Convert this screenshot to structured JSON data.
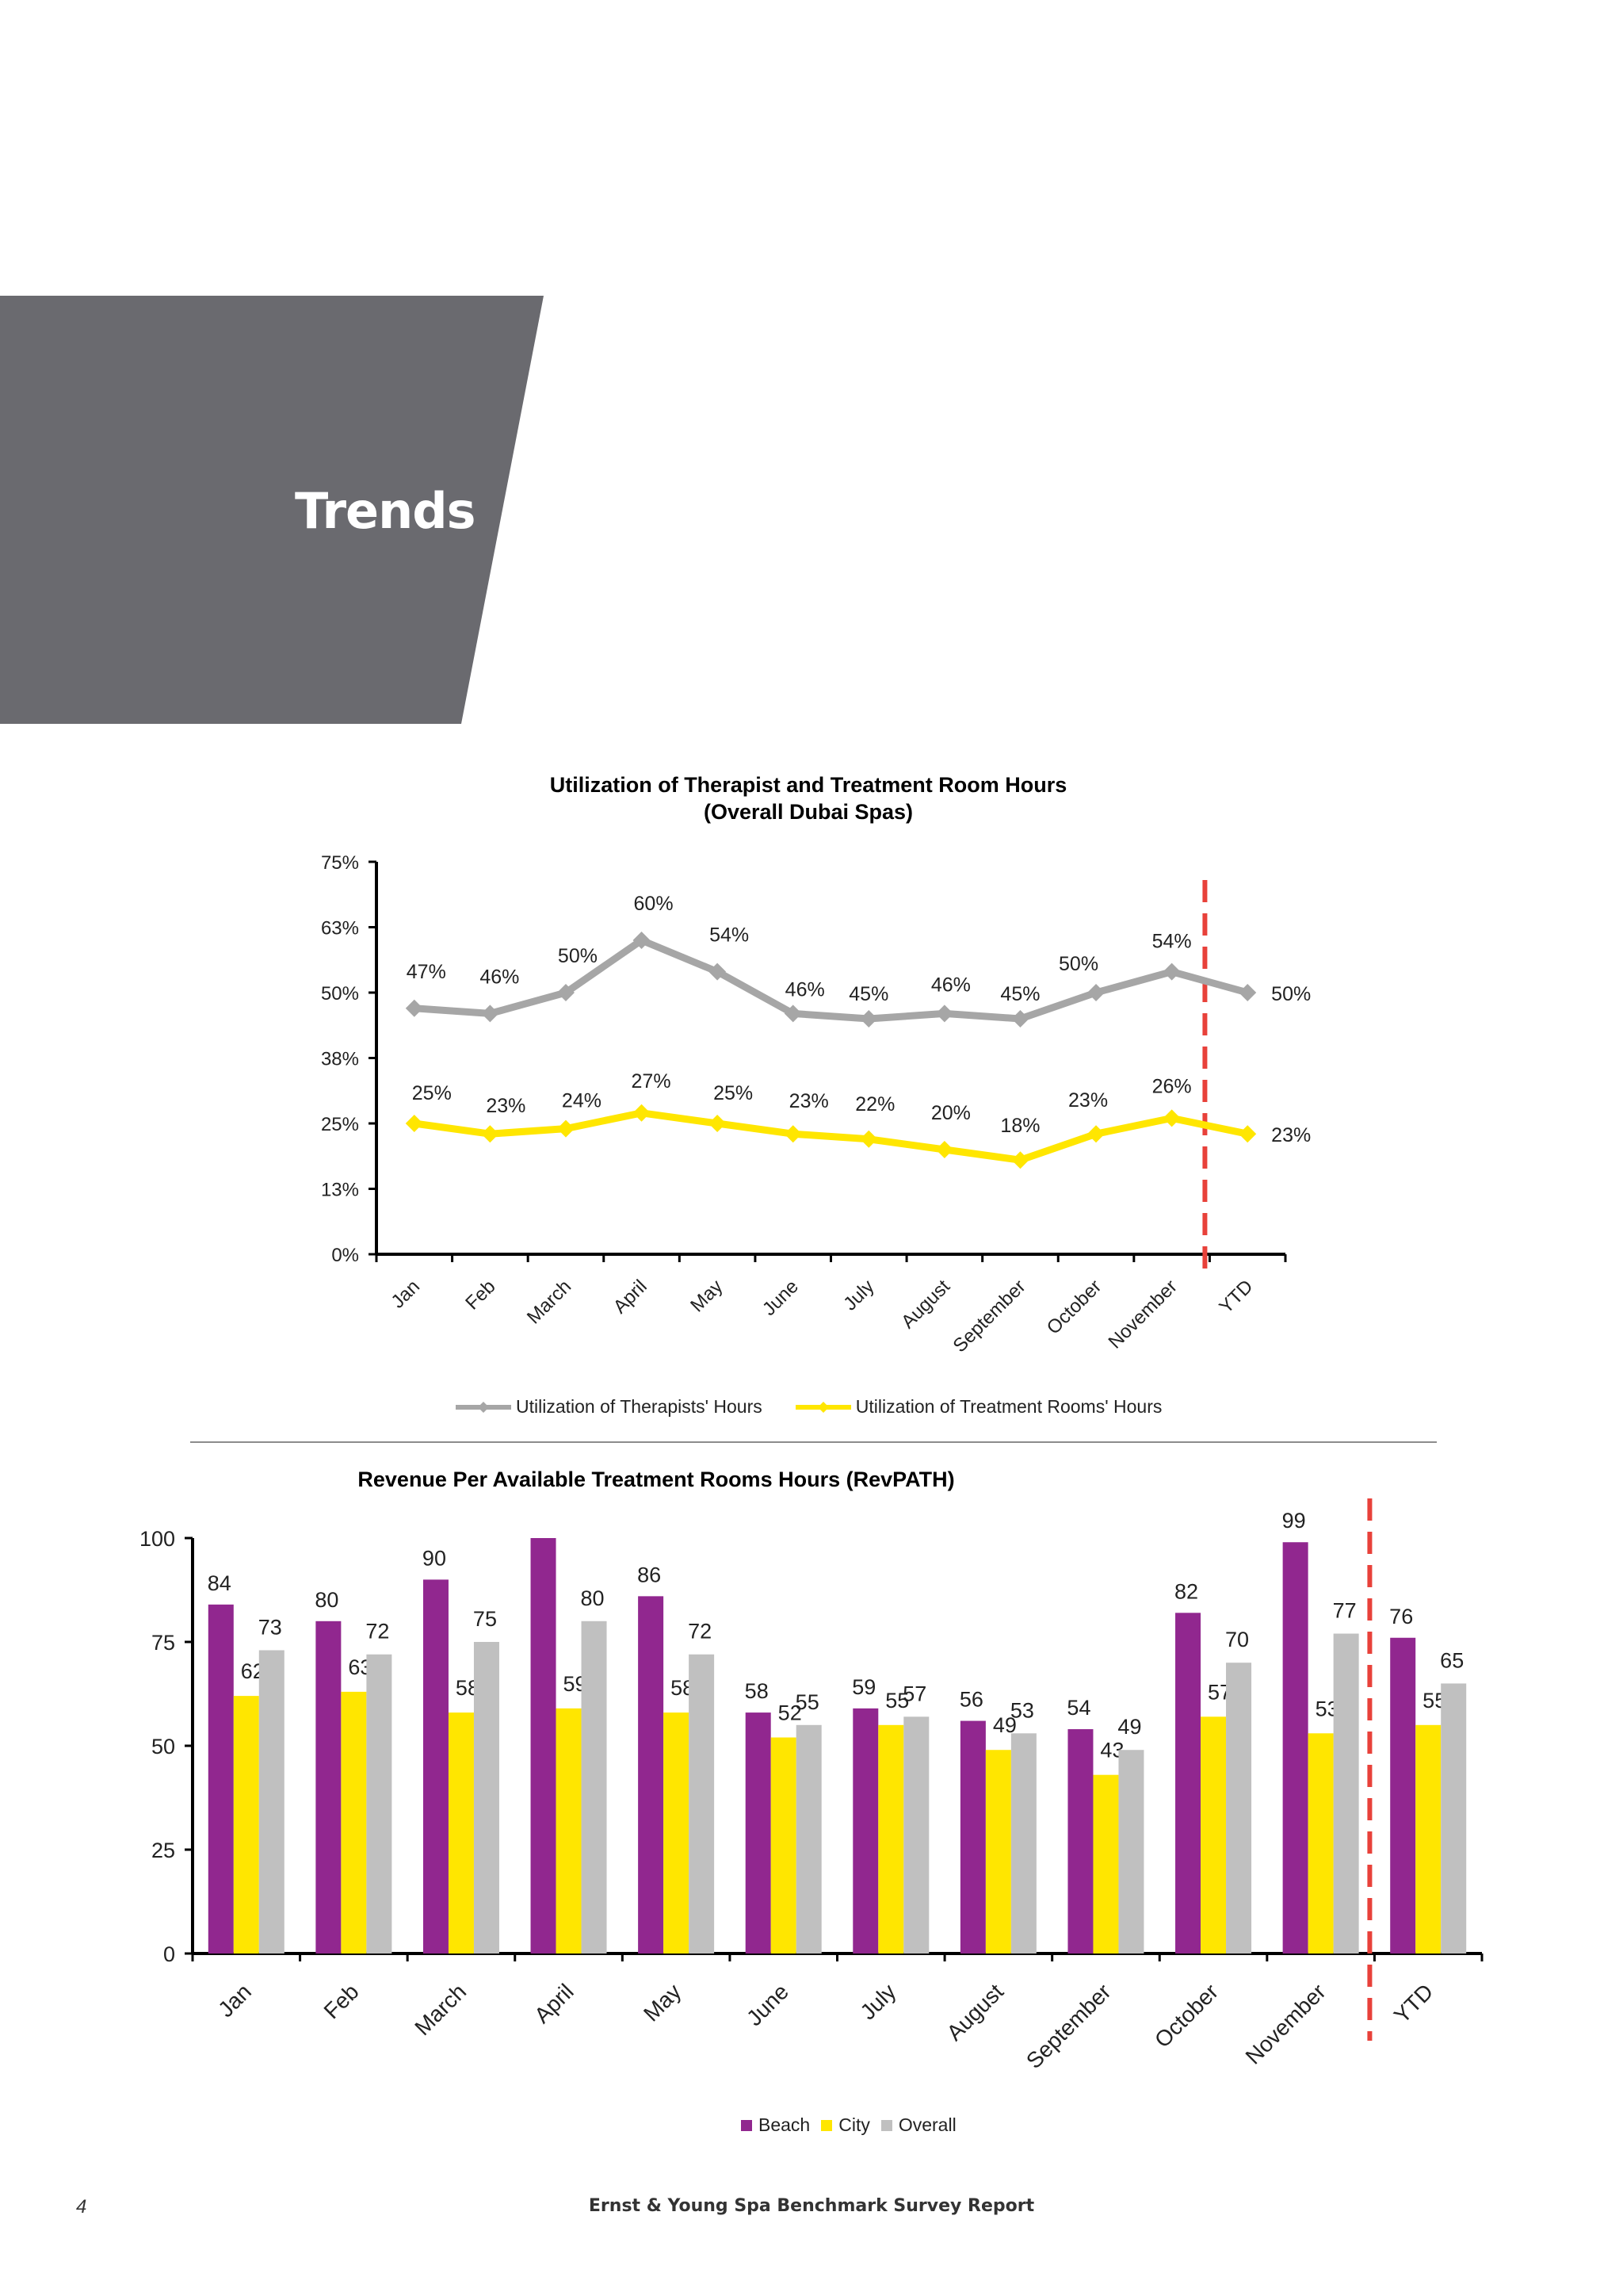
{
  "page": {
    "section_title": "Trends",
    "page_number": "4",
    "footer": "Ernst & Young Spa Benchmark Survey Report",
    "banner_color": "#6a6a6f"
  },
  "chart_data": [
    {
      "type": "line",
      "title": "Utilization of Therapist and Treatment Room Hours",
      "subtitle": "(Overall Dubai Spas)",
      "categories": [
        "Jan",
        "Feb",
        "March",
        "April",
        "May",
        "June",
        "July",
        "August",
        "September",
        "October",
        "November",
        "YTD"
      ],
      "y_ticks": [
        "0%",
        "13%",
        "25%",
        "38%",
        "50%",
        "63%",
        "75%"
      ],
      "ylim": [
        0,
        75
      ],
      "series": [
        {
          "name": "Utilization of Therapists' Hours",
          "color": "#a6a6a6",
          "values": [
            47,
            46,
            50,
            60,
            54,
            46,
            45,
            46,
            45,
            50,
            54,
            50
          ],
          "labels": [
            "47%",
            "46%",
            "50%",
            "60%",
            "54%",
            "46%",
            "45%",
            "46%",
            "45%",
            "50%",
            "54%",
            "50%"
          ]
        },
        {
          "name": "Utilization of Treatment Rooms' Hours",
          "color": "#ffe600",
          "values": [
            25,
            23,
            24,
            27,
            25,
            23,
            22,
            20,
            18,
            23,
            26,
            23
          ],
          "labels": [
            "25%",
            "23%",
            "24%",
            "27%",
            "25%",
            "23%",
            "22%",
            "20%",
            "18%",
            "23%",
            "26%",
            "23%"
          ]
        }
      ],
      "separator": "dashed red line between November and YTD",
      "legend_position": "bottom"
    },
    {
      "type": "bar",
      "title": "Revenue Per Available Treatment Rooms Hours (RevPATH)",
      "categories": [
        "Jan",
        "Feb",
        "March",
        "April",
        "May",
        "June",
        "July",
        "August",
        "September",
        "October",
        "November",
        "YTD"
      ],
      "y_ticks": [
        "0",
        "25",
        "50",
        "75",
        "100"
      ],
      "ylim": [
        0,
        100
      ],
      "series": [
        {
          "name": "Beach",
          "color": "#91278f",
          "values": [
            84,
            80,
            90,
            100,
            86,
            58,
            59,
            56,
            54,
            82,
            99,
            76
          ],
          "labels": [
            "84",
            "80",
            "90",
            "",
            "86",
            "58",
            "59",
            "56",
            "54",
            "82",
            "99",
            "76"
          ]
        },
        {
          "name": "City",
          "color": "#ffe600",
          "values": [
            62,
            63,
            58,
            59,
            58,
            52,
            55,
            49,
            43,
            57,
            53,
            55
          ],
          "labels": [
            "62",
            "63",
            "58",
            "59",
            "58",
            "52",
            "55",
            "49",
            "43",
            "57",
            "53",
            "55"
          ]
        },
        {
          "name": "Overall",
          "color": "#c0c0c0",
          "values": [
            73,
            72,
            75,
            80,
            72,
            55,
            57,
            53,
            49,
            70,
            77,
            65
          ],
          "labels": [
            "73",
            "72",
            "75",
            "80",
            "72",
            "55",
            "57",
            "53",
            "49",
            "70",
            "77",
            "65"
          ]
        }
      ],
      "separator": "dashed red line between November and YTD",
      "legend_position": "bottom"
    }
  ]
}
